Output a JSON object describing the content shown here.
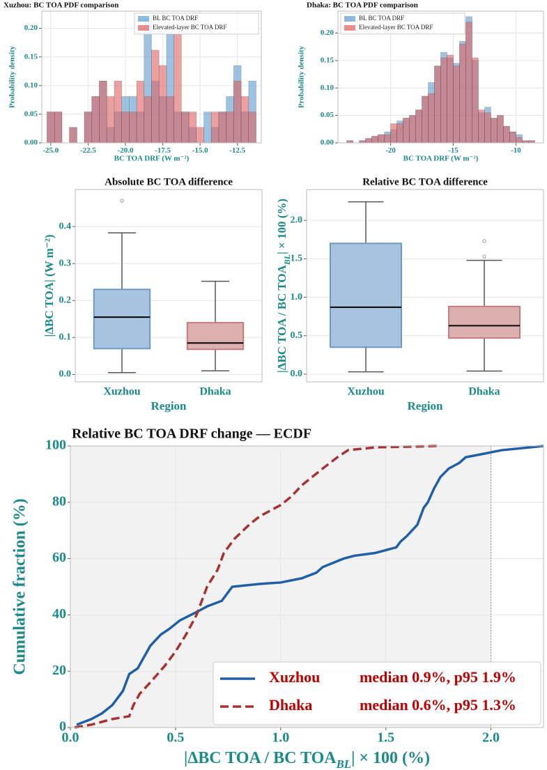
{
  "chart_data": [
    {
      "type": "histogram",
      "title": "Xuzhou: BC TOA PDF comparison",
      "xlabel": "BC TOA DRF (W m⁻²)",
      "ylabel": "Probability density",
      "bins": [
        -25.25,
        -24.75,
        -24.25,
        -23.75,
        -23.25,
        -22.75,
        -22.25,
        -21.75,
        -21.25,
        -20.75,
        -20.25,
        -19.75,
        -19.25,
        -18.75,
        -18.25,
        -17.75,
        -17.25,
        -16.75,
        -16.25,
        -15.75,
        -15.25,
        -14.75,
        -14.25,
        -13.75,
        -13.25,
        -12.75,
        -12.25,
        -11.75,
        -11.25
      ],
      "series": [
        {
          "name": "BL BC TOA DRF",
          "color": "#5b9bd0",
          "values": [
            0.054,
            0.054,
            0,
            0.027,
            0,
            0.054,
            0.081,
            0.108,
            0.027,
            0.054,
            0.081,
            0.081,
            0.054,
            0.216,
            0.108,
            0.081,
            0.189,
            0.054,
            0.054,
            0.027,
            0,
            0.054,
            0.027,
            0.054,
            0.081,
            0.135,
            0.054,
            0.108
          ]
        },
        {
          "name": "Elevated-layer BC TOA DRF",
          "color": "#e06060",
          "values": [
            0.054,
            0.054,
            0,
            0.027,
            0,
            0.054,
            0.081,
            0.108,
            0.081,
            0.108,
            0.054,
            0.054,
            0.108,
            0.081,
            0.162,
            0.135,
            0.081,
            0.189,
            0.054,
            0.054,
            0.027,
            0,
            0.054,
            0.054,
            0.054,
            0.108,
            0.081,
            0.054
          ]
        }
      ],
      "xlim": [
        -25.6,
        -10.9
      ],
      "ylim": [
        0,
        0.23
      ],
      "xticks": [
        {
          "value": -25,
          "label": "-25.0"
        },
        {
          "value": -22.5,
          "label": "-22.5"
        },
        {
          "value": -20,
          "label": "-20.0"
        },
        {
          "value": -17.5,
          "label": "-17.5"
        },
        {
          "value": -15,
          "label": "-15.0"
        },
        {
          "value": -12.5,
          "label": "-12.5"
        }
      ],
      "yticks": [
        {
          "value": 0,
          "label": "0.00"
        },
        {
          "value": 0.05,
          "label": "0.05"
        },
        {
          "value": 0.1,
          "label": "0.10"
        },
        {
          "value": 0.15,
          "label": "0.15"
        },
        {
          "value": 0.2,
          "label": "0.20"
        }
      ],
      "grid": true,
      "legend": "upper right"
    },
    {
      "type": "histogram",
      "title": "Dhaka: BC TOA PDF comparison",
      "xlabel": "BC TOA DRF (W m⁻²)",
      "ylabel": "Probability density",
      "bins": [
        -23.5,
        -23,
        -22.5,
        -22,
        -21.5,
        -21,
        -20.5,
        -20,
        -19.5,
        -19,
        -18.5,
        -18,
        -17.5,
        -17,
        -16.5,
        -16,
        -15.5,
        -15,
        -14.5,
        -14,
        -13.5,
        -13,
        -12.5,
        -12,
        -11.5,
        -11,
        -10.5,
        -10,
        -9.5,
        -9,
        -8.5
      ],
      "series": [
        {
          "name": "BL BC TOA DRF",
          "color": "#5b9bd0",
          "values": [
            0.004,
            0,
            0.004,
            0.008,
            0.012,
            0.015,
            0.02,
            0.024,
            0.04,
            0.045,
            0.05,
            0.06,
            0.085,
            0.11,
            0.14,
            0.165,
            0.155,
            0.145,
            0.185,
            0.23,
            0.15,
            0.055,
            0.065,
            0.045,
            0.05,
            0.03,
            0.02,
            0.015,
            0.004,
            0.004
          ]
        },
        {
          "name": "Elevated-layer BC TOA DRF",
          "color": "#e06060",
          "values": [
            0.004,
            0,
            0.004,
            0.008,
            0.012,
            0.015,
            0.015,
            0.035,
            0.035,
            0.045,
            0.05,
            0.06,
            0.085,
            0.09,
            0.14,
            0.155,
            0.16,
            0.14,
            0.18,
            0.22,
            0.155,
            0.06,
            0.055,
            0.045,
            0.05,
            0.03,
            0.02,
            0.01,
            0.004,
            0.004
          ]
        }
      ],
      "xlim": [
        -24.2,
        -7.8
      ],
      "ylim": [
        0,
        0.24
      ],
      "xticks": [
        -20,
        -15,
        -10
      ],
      "yticks": [
        {
          "value": 0,
          "label": "0.00"
        },
        {
          "value": 0.05,
          "label": "0.05"
        },
        {
          "value": 0.1,
          "label": "0.10"
        },
        {
          "value": 0.15,
          "label": "0.15"
        },
        {
          "value": 0.2,
          "label": "0.20"
        }
      ],
      "grid": true,
      "legend": "upper left"
    },
    {
      "type": "box",
      "title": "Absolute BC TOA difference",
      "xlabel": "Region",
      "ylabel": "|ΔBC TOA| (W m⁻²)",
      "boxes": [
        {
          "name": "Xuzhou",
          "color": "#a6c3e0",
          "edge": "#6d9ac7",
          "whislo": 0.005,
          "q1": 0.07,
          "median": 0.155,
          "q3": 0.23,
          "whishi": 0.383,
          "fliers": [
            0.47
          ]
        },
        {
          "name": "Dhaka",
          "color": "#ddb0b0",
          "edge": "#c67c7c",
          "whislo": 0.01,
          "q1": 0.068,
          "median": 0.085,
          "q3": 0.14,
          "whishi": 0.252,
          "fliers": []
        }
      ],
      "ylim": [
        -0.02,
        0.5
      ],
      "yticks": [
        {
          "value": 0,
          "label": "0.0"
        },
        {
          "value": 0.1,
          "label": "0.1"
        },
        {
          "value": 0.2,
          "label": "0.2"
        },
        {
          "value": 0.3,
          "label": "0.3"
        },
        {
          "value": 0.4,
          "label": "0.4"
        }
      ],
      "grid": true
    },
    {
      "type": "box",
      "title": "Relative BC TOA difference",
      "xlabel": "Region",
      "ylabel": [
        "|ΔBC TOA / BC TOA",
        "BL",
        "| × 100 (%)"
      ],
      "boxes": [
        {
          "name": "Xuzhou",
          "color": "#a6c3e0",
          "edge": "#6d9ac7",
          "whislo": 0.03,
          "q1": 0.35,
          "median": 0.87,
          "q3": 1.7,
          "whishi": 2.24,
          "fliers": []
        },
        {
          "name": "Dhaka",
          "color": "#ddb0b0",
          "edge": "#c67c7c",
          "whislo": 0.04,
          "q1": 0.47,
          "median": 0.63,
          "q3": 0.88,
          "whishi": 1.48,
          "fliers": [
            1.53,
            1.73
          ]
        }
      ],
      "ylim": [
        -0.1,
        2.4
      ],
      "yticks": [
        {
          "value": 0,
          "label": "0.0"
        },
        {
          "value": 0.5,
          "label": "0.5"
        },
        {
          "value": 1,
          "label": "1.0"
        },
        {
          "value": 1.5,
          "label": "1.5"
        },
        {
          "value": 2,
          "label": "2.0"
        }
      ],
      "grid": true
    },
    {
      "type": "line",
      "title": "Relative BC TOA DRF change — ECDF",
      "xlabel": [
        "|ΔBC TOA / BC TOA",
        "BL",
        "| × 100 (%)"
      ],
      "ylabel": "Cumulative fraction (%)",
      "series": [
        {
          "name": "Xuzhou",
          "note": "median 0.9%, p95 1.9%",
          "color": "#1f5fa8",
          "dash": false,
          "x": [
            0.03,
            0.1,
            0.15,
            0.2,
            0.25,
            0.28,
            0.32,
            0.35,
            0.38,
            0.43,
            0.47,
            0.52,
            0.6,
            0.65,
            0.72,
            0.75,
            0.77,
            0.9,
            1.0,
            1.1,
            1.17,
            1.2,
            1.3,
            1.35,
            1.45,
            1.55,
            1.57,
            1.6,
            1.65,
            1.68,
            1.7,
            1.73,
            1.76,
            1.8,
            1.85,
            1.88,
            1.95,
            2.05,
            2.25
          ],
          "values": [
            1,
            3,
            5,
            8,
            13,
            19,
            21,
            25,
            29,
            33,
            35,
            38,
            41,
            43,
            45,
            48,
            50,
            51,
            51.5,
            53,
            55,
            57,
            60,
            61,
            62,
            64,
            66,
            68,
            72,
            78,
            80,
            85,
            89,
            92,
            94,
            96,
            97,
            98.5,
            100
          ]
        },
        {
          "name": "Dhaka",
          "note": "median 0.6%, p95 1.3%",
          "color": "#a83232",
          "dash": true,
          "x": [
            0.02,
            0.1,
            0.2,
            0.28,
            0.3,
            0.33,
            0.38,
            0.45,
            0.5,
            0.55,
            0.6,
            0.65,
            0.7,
            0.73,
            0.78,
            0.85,
            0.9,
            1.0,
            1.05,
            1.1,
            1.2,
            1.27,
            1.32,
            1.45,
            1.75
          ],
          "values": [
            0,
            1,
            3,
            4,
            8,
            12,
            16,
            22,
            27,
            33,
            40,
            50,
            56,
            62,
            67,
            72,
            75,
            79,
            82,
            86,
            92,
            96,
            98.5,
            99.5,
            100
          ]
        }
      ],
      "xlim": [
        0,
        2.25
      ],
      "ylim": [
        0,
        100
      ],
      "xticks": [
        {
          "value": 0,
          "label": "0.0"
        },
        {
          "value": 0.5,
          "label": "0.5"
        },
        {
          "value": 1,
          "label": "1.0"
        },
        {
          "value": 1.5,
          "label": "1.5"
        },
        {
          "value": 2,
          "label": "2.0"
        }
      ],
      "yticks": [
        0,
        20,
        40,
        60,
        80,
        100
      ],
      "vline": 2.0,
      "grid": true,
      "legend": "lower right"
    }
  ]
}
